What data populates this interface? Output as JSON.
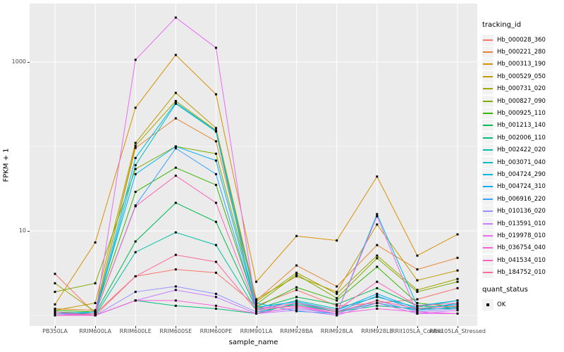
{
  "figure": {
    "background": "#FFFFFF",
    "panel_background": "#EBEBEB",
    "grid_color": "#FFFFFF",
    "tick_color": "#333333",
    "tick_label_color": "#4D4D4D",
    "point_color": "#000000"
  },
  "axes": {
    "x_title": "sample_name",
    "y_title": "FPKM + 1",
    "y_scale": "log10",
    "y_major_ticks": [
      {
        "label": "10",
        "value": 10
      },
      {
        "label": "1000",
        "value": 1000
      }
    ],
    "y_minor_values": [
      1,
      100
    ]
  },
  "legends": {
    "tracking": {
      "title": "tracking_id"
    },
    "quant": {
      "title": "quant_status",
      "items": [
        {
          "label": "OK",
          "symbol": "black-square-point"
        }
      ]
    }
  },
  "chart_data": {
    "type": "line",
    "title": "",
    "xlabel": "sample_name",
    "ylabel": "FPKM + 1",
    "y_scale": "log10",
    "ylim": [
      1,
      4900
    ],
    "grid": true,
    "legend_position": "right",
    "point_marker": "small-black-square",
    "categories": [
      "PB350LA",
      "RRIM600LA",
      "RRIM600LE",
      "RRIM600SE",
      "RRIM600PE",
      "RRIM901LA",
      "RRIM928BA",
      "RRIM928LA",
      "RRIM928LE",
      "RRII105LA_Control",
      "RRII105LA_Stressed"
    ],
    "series": [
      {
        "name": "Hb_000028_360",
        "color": "#F8766D",
        "values": [
          3.1,
          1.05,
          2.9,
          3.5,
          3.2,
          1.3,
          2.0,
          1.3,
          1.4,
          1.55,
          2.1
        ]
      },
      {
        "name": "Hb_000221_280",
        "color": "#EA8331",
        "values": [
          1.2,
          1.15,
          96,
          215,
          115,
          1.5,
          3.9,
          2.2,
          6.8,
          3.5,
          4.8
        ]
      },
      {
        "name": "Hb_000313_190",
        "color": "#D89000",
        "values": [
          1.35,
          7.3,
          287,
          1210,
          414,
          2.5,
          8.7,
          7.7,
          44,
          5.1,
          9.1
        ]
      },
      {
        "name": "Hb_000529_050",
        "color": "#C09B00",
        "values": [
          1.15,
          1.4,
          110,
          430,
          165,
          1.55,
          2.9,
          1.9,
          11.9,
          2.6,
          3.4
        ]
      },
      {
        "name": "Hb_000731_020",
        "color": "#A3A500",
        "values": [
          2.4,
          1.1,
          102,
          345,
          155,
          1.45,
          3.2,
          1.8,
          5.1,
          2.0,
          2.7
        ]
      },
      {
        "name": "Hb_000827_090",
        "color": "#7CAE00",
        "values": [
          1.9,
          2.4,
          54,
          100,
          82,
          1.35,
          3.05,
          1.6,
          4.75,
          1.9,
          2.5
        ]
      },
      {
        "name": "Hb_000925_110",
        "color": "#39B600",
        "values": [
          1.15,
          1.1,
          29,
          56,
          35,
          1.25,
          2.15,
          1.5,
          3.76,
          1.4,
          1.25
        ]
      },
      {
        "name": "Hb_001213_140",
        "color": "#00BB4E",
        "values": [
          1.1,
          1.05,
          7.5,
          21.5,
          12.8,
          1.2,
          1.65,
          1.35,
          2.1,
          1.3,
          1.23
        ]
      },
      {
        "name": "Hb_002006_110",
        "color": "#00BF7D",
        "values": [
          1.05,
          1.0,
          1.5,
          1.3,
          1.2,
          1.05,
          1.4,
          1.1,
          1.3,
          1.2,
          1.2
        ]
      },
      {
        "name": "Hb_002422_020",
        "color": "#00C1A3",
        "values": [
          1.05,
          1.0,
          5.6,
          9.6,
          6.8,
          1.15,
          1.5,
          1.2,
          1.65,
          1.25,
          1.5
        ]
      },
      {
        "name": "Hb_003071_040",
        "color": "#00BFC4",
        "values": [
          1.0,
          1.0,
          60,
          320,
          150,
          1.1,
          1.35,
          1.1,
          1.4,
          1.15,
          1.4
        ]
      },
      {
        "name": "Hb_004724_290",
        "color": "#00BAE0",
        "values": [
          1.05,
          1.05,
          73,
          330,
          152,
          1.4,
          1.12,
          1.05,
          15.8,
          1.3,
          1.5
        ]
      },
      {
        "name": "Hb_004724_310",
        "color": "#00B0F6",
        "values": [
          1.05,
          1.1,
          47,
          100,
          68,
          1.25,
          1.45,
          1.15,
          1.8,
          1.2,
          1.35
        ]
      },
      {
        "name": "Hb_006916_220",
        "color": "#35A2FF",
        "values": [
          1.0,
          1.05,
          20,
          95,
          47,
          1.2,
          1.3,
          1.1,
          1.7,
          1.15,
          1.25
        ]
      },
      {
        "name": "Hb_010136_020",
        "color": "#9590FF",
        "values": [
          1.1,
          1.0,
          1.9,
          2.2,
          1.8,
          1.1,
          1.2,
          1.05,
          1.5,
          1.1,
          1.2
        ]
      },
      {
        "name": "Hb_013591_010",
        "color": "#C77CFF",
        "values": [
          1.05,
          1.0,
          1.5,
          2.0,
          1.65,
          1.05,
          1.15,
          1.0,
          1.4,
          1.05,
          1.15
        ]
      },
      {
        "name": "Hb_019978_010",
        "color": "#E76BF3",
        "values": [
          1.0,
          1.0,
          1060,
          3350,
          1470,
          1.2,
          1.3,
          1.05,
          14.9,
          1.05,
          1.05
        ]
      },
      {
        "name": "Hb_036754_040",
        "color": "#FA62DB",
        "values": [
          1.0,
          1.0,
          1.5,
          1.5,
          1.3,
          1.05,
          1.25,
          1.05,
          1.2,
          1.1,
          1.05
        ]
      },
      {
        "name": "Hb_041534_010",
        "color": "#FF62BC",
        "values": [
          1.0,
          1.05,
          19.6,
          45,
          21.5,
          1.2,
          1.4,
          1.15,
          2.5,
          1.3,
          1.4
        ]
      },
      {
        "name": "Hb_184752_010",
        "color": "#FF6A98",
        "values": [
          1.1,
          1.0,
          2.9,
          5.2,
          4.3,
          1.15,
          1.3,
          1.1,
          1.5,
          1.2,
          1.3
        ]
      }
    ]
  }
}
